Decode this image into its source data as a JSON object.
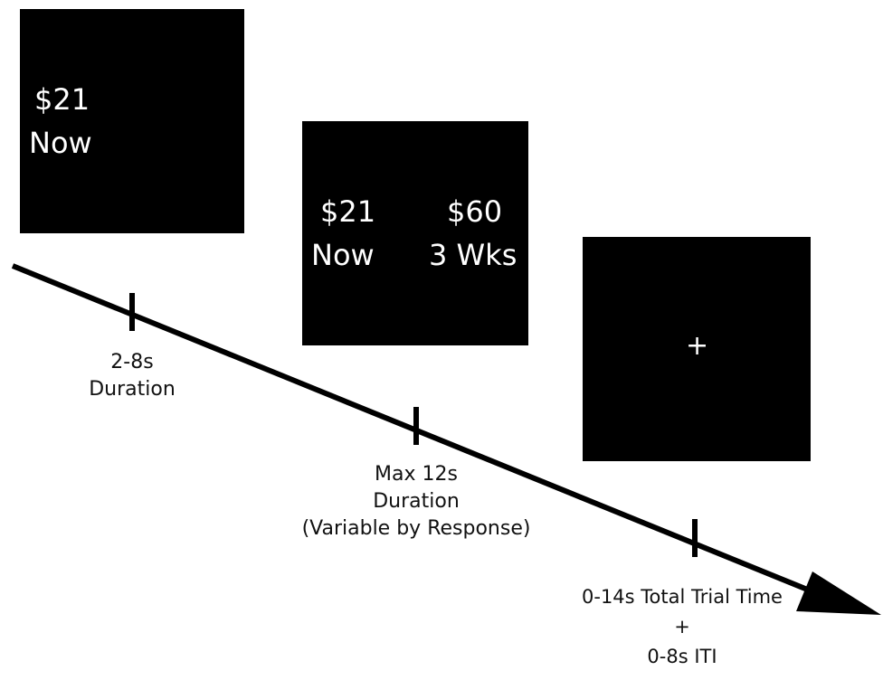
{
  "screens": {
    "screen1": {
      "amount": "$21",
      "delay": "Now"
    },
    "screen2": {
      "left": {
        "amount": "$21",
        "delay": "Now"
      },
      "right": {
        "amount": "$60",
        "delay": "3 Wks"
      }
    },
    "screen3": {
      "fixation": "+"
    }
  },
  "labels": {
    "tick1": {
      "line1": "2-8s",
      "line2": "Duration"
    },
    "tick2": {
      "line1": "Max 12s",
      "line2": "Duration",
      "line3": "(Variable by Response)"
    },
    "tick3": {
      "line1": "0-14s Total Trial Time",
      "line2": "+",
      "line3": "0-8s ITI"
    }
  },
  "colors": {
    "screen": "#000000",
    "screen_text": "#ffffff",
    "arrow": "#000000"
  }
}
